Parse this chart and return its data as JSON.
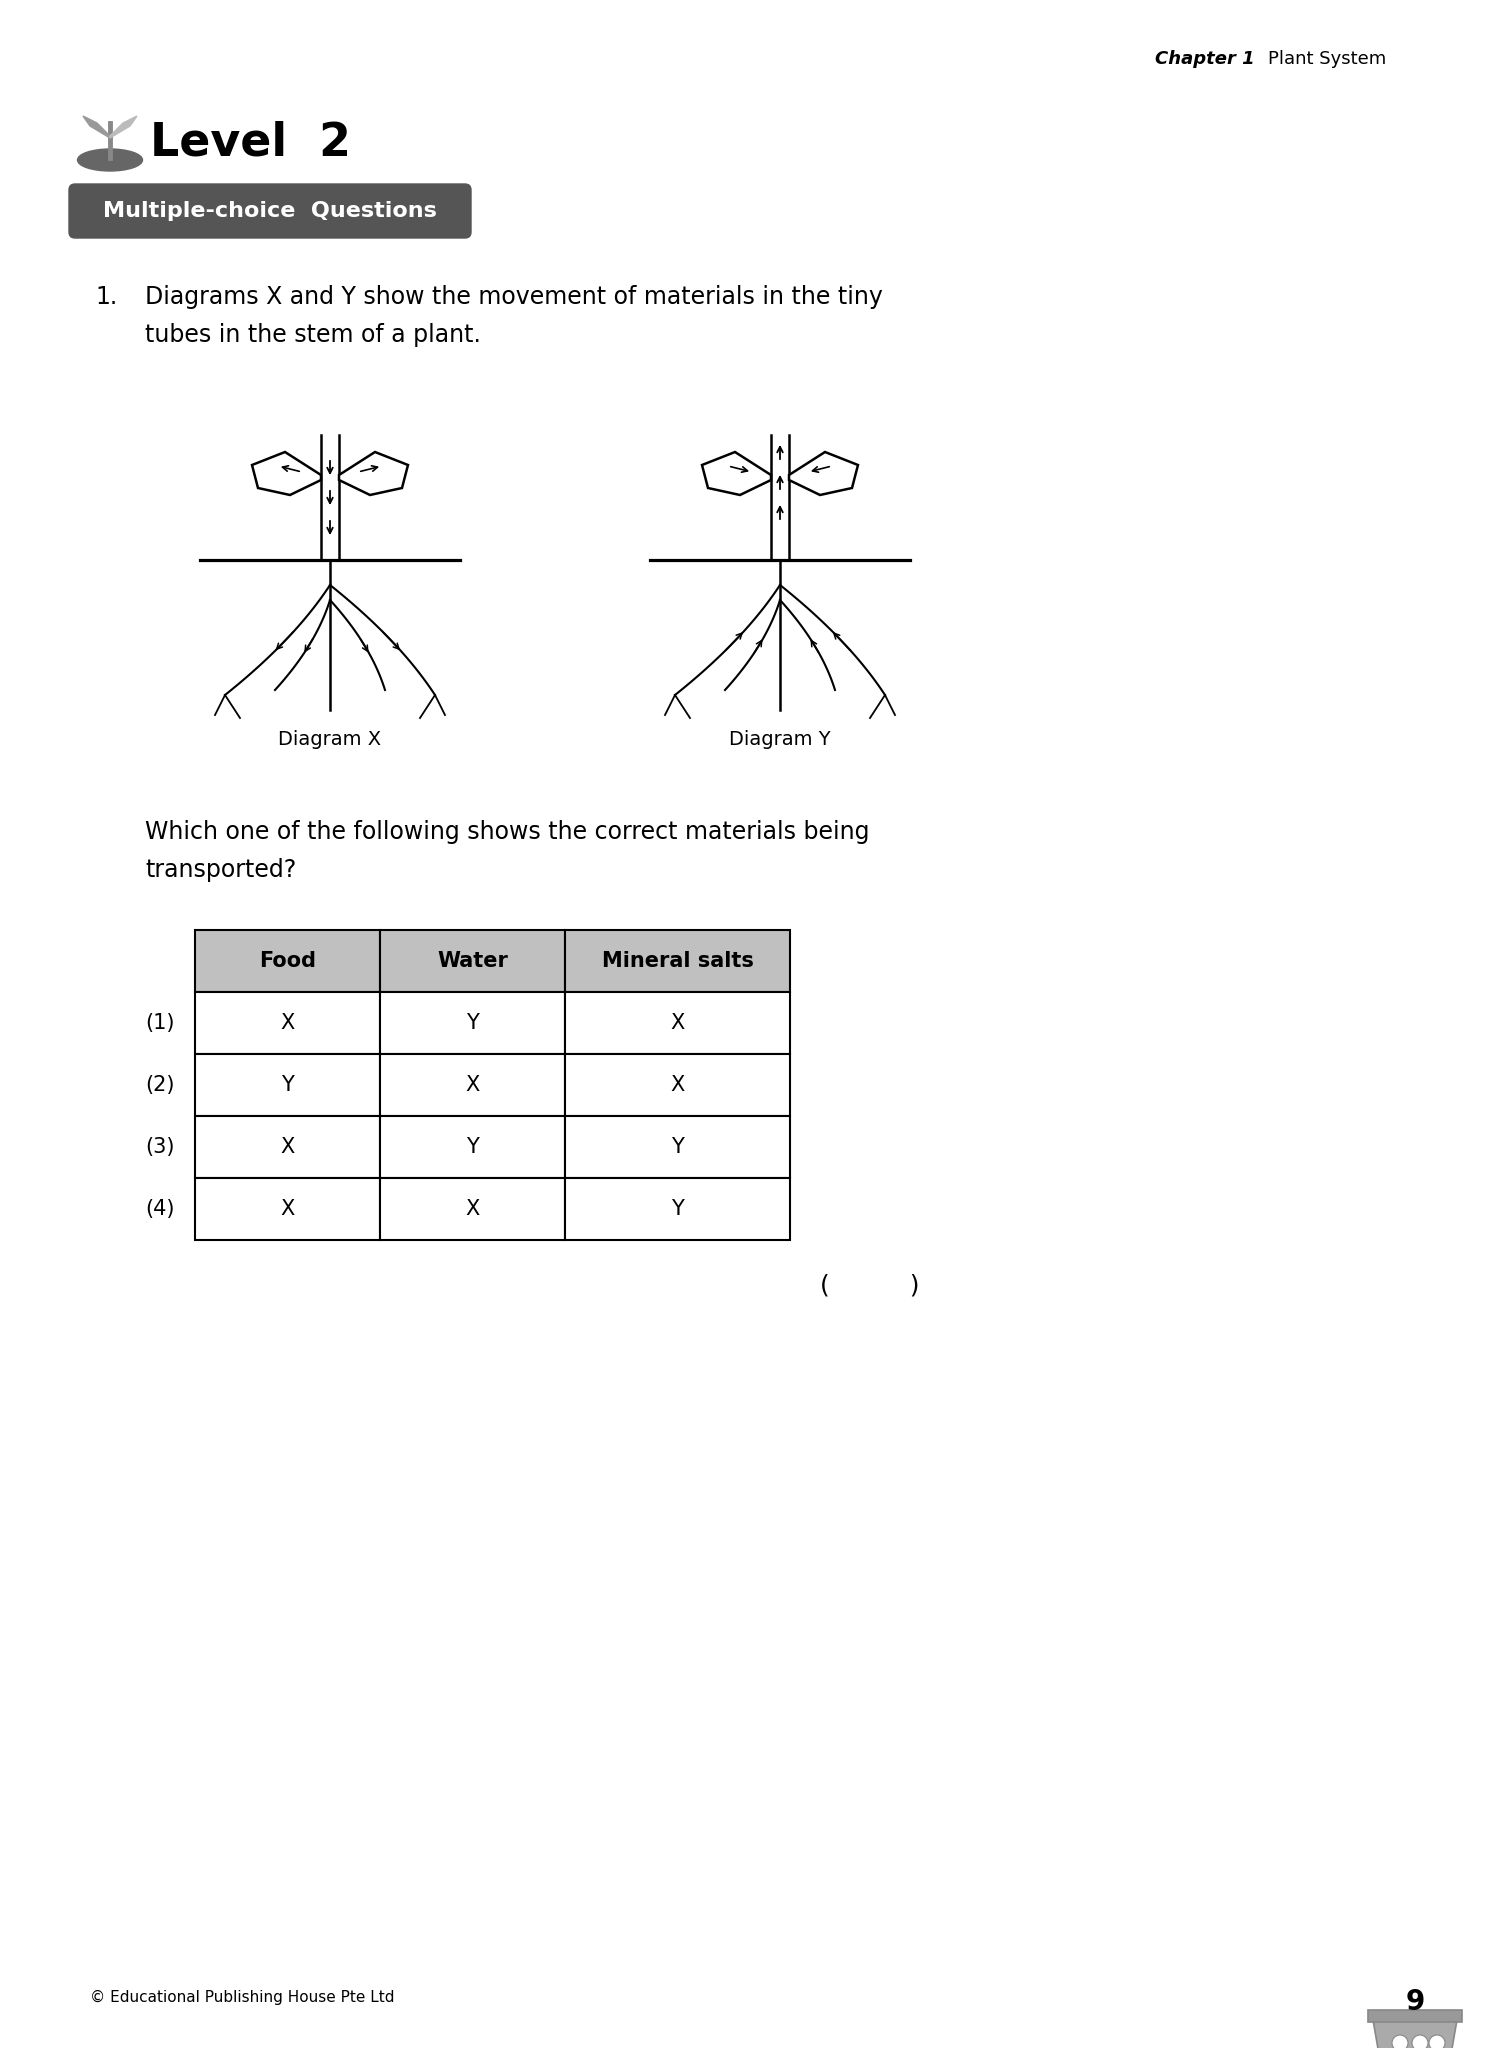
{
  "page_bg": "#ffffff",
  "chapter_bold": "Chapter 1",
  "chapter_normal": "Plant System",
  "level_text": "Level  2",
  "section_label": "Multiple-choice  Questions",
  "section_bg": "#555555",
  "q_number": "1.",
  "q1_line1": "Diagrams X and Y show the movement of materials in the tiny",
  "q1_line2": "tubes in the stem of a plant.",
  "diagram_x_label": "Diagram X",
  "diagram_y_label": "Diagram Y",
  "sub_line1": "Which one of the following shows the correct materials being",
  "sub_line2": "transported?",
  "table_headers": [
    "Food",
    "Water",
    "Mineral salts"
  ],
  "row_labels": [
    "(1)",
    "(2)",
    "(3)",
    "(4)"
  ],
  "table_data": [
    [
      "X",
      "Y",
      "X"
    ],
    [
      "Y",
      "X",
      "X"
    ],
    [
      "X",
      "Y",
      "Y"
    ],
    [
      "X",
      "X",
      "Y"
    ]
  ],
  "header_bg": "#c0c0c0",
  "cell_bg": "#ffffff",
  "copyright": "© Educational Publishing House Pte Ltd",
  "page_number": "9",
  "answer_bracket": "(          )"
}
